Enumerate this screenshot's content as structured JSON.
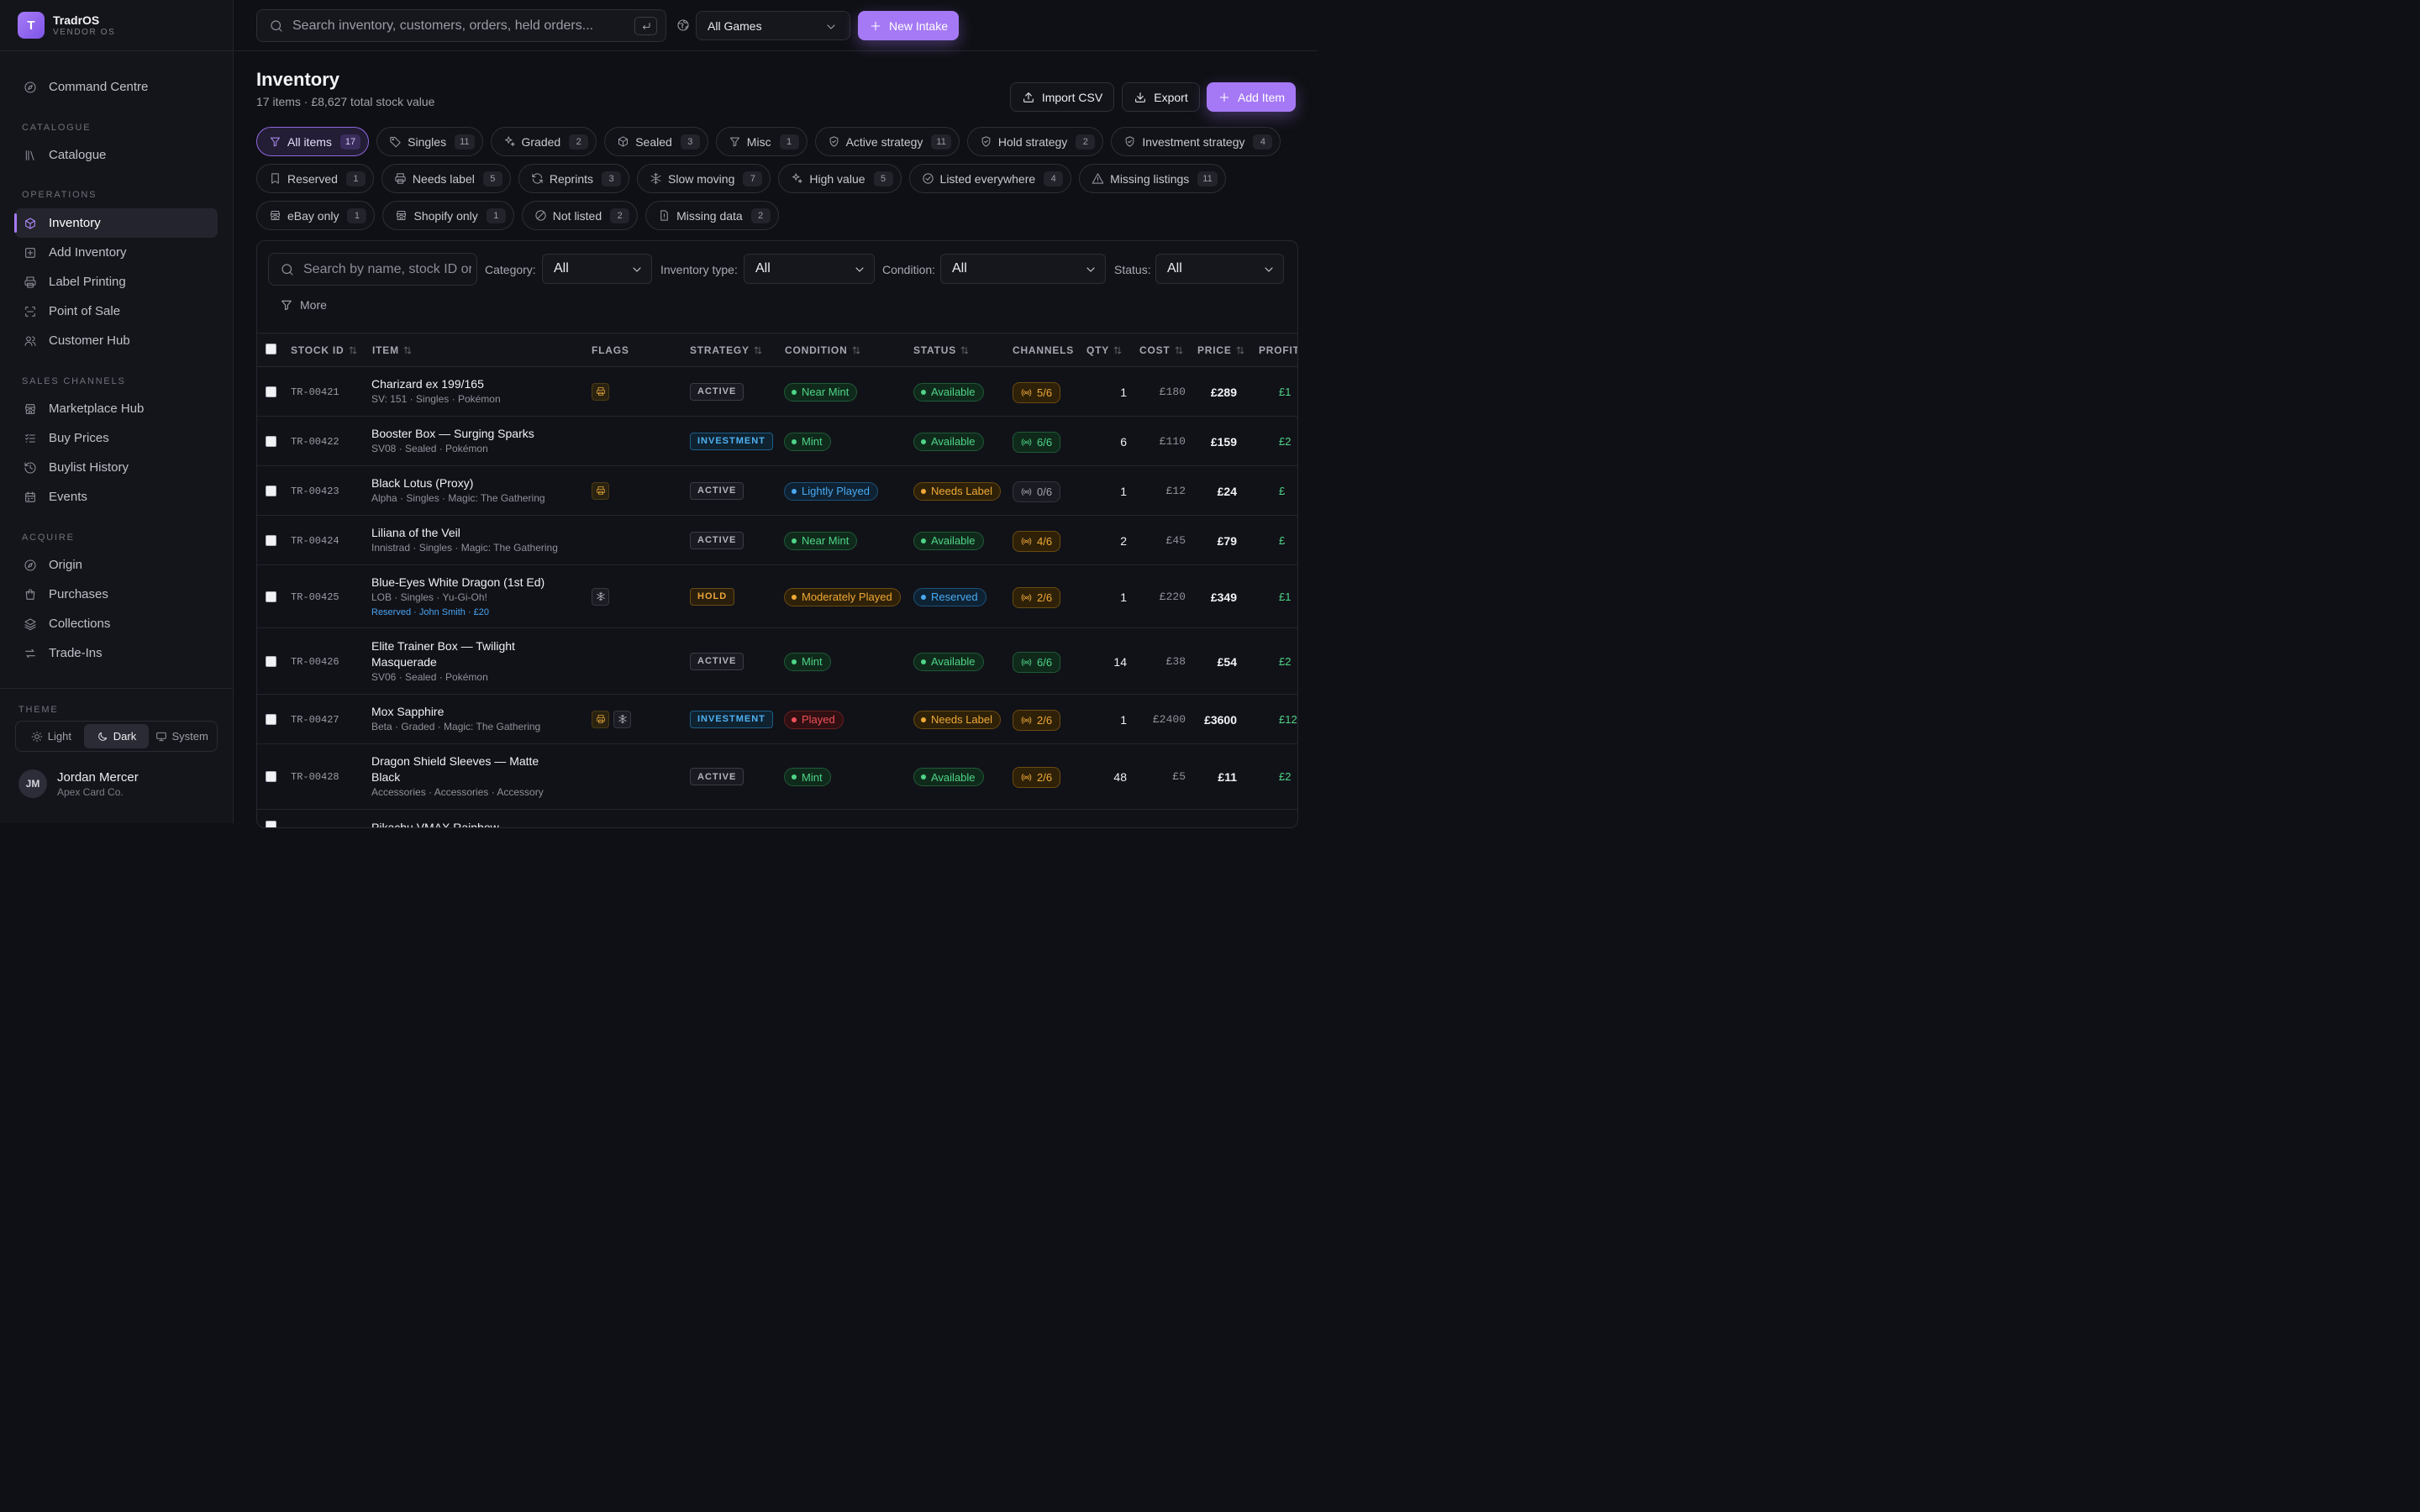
{
  "brand": {
    "logo_letter": "T",
    "name": "TradrOS",
    "sub": "VENDOR OS"
  },
  "nav": {
    "command": "Command Centre",
    "catalogue_section": "CATALOGUE",
    "catalogue": "Catalogue",
    "operations_section": "OPERATIONS",
    "inventory": "Inventory",
    "add_inventory": "Add Inventory",
    "label_printing": "Label Printing",
    "pos": "Point of Sale",
    "customer_hub": "Customer Hub",
    "sales_section": "SALES CHANNELS",
    "marketplace": "Marketplace Hub",
    "buy_prices": "Buy Prices",
    "buylist": "Buylist History",
    "events": "Events",
    "acquire_section": "ACQUIRE",
    "origin": "Origin",
    "purchases": "Purchases",
    "collections": "Collections",
    "trade_ins": "Trade-Ins"
  },
  "theme": {
    "label": "THEME",
    "light": "Light",
    "dark": "Dark",
    "system": "System"
  },
  "user": {
    "initials": "JM",
    "name": "Jordan Mercer",
    "org": "Apex Card Co."
  },
  "topbar": {
    "search_placeholder": "Search inventory, customers, orders, held orders...",
    "game_select": "All Games",
    "new_intake": "New Intake"
  },
  "page": {
    "title": "Inventory",
    "subtitle": "17 items · £8,627 total stock value",
    "import_csv": "Import CSV",
    "export": "Export",
    "add_item": "Add Item"
  },
  "chips": [
    {
      "label": "All items",
      "count": "17",
      "icon": "filter-icon"
    },
    {
      "label": "Singles",
      "count": "11",
      "icon": "tag-icon"
    },
    {
      "label": "Graded",
      "count": "2",
      "icon": "sparkle-icon"
    },
    {
      "label": "Sealed",
      "count": "3",
      "icon": "box-icon"
    },
    {
      "label": "Misc",
      "count": "1",
      "icon": "filter-icon"
    },
    {
      "label": "Active strategy",
      "count": "11",
      "icon": "shield-icon"
    },
    {
      "label": "Hold strategy",
      "count": "2",
      "icon": "shield-icon"
    },
    {
      "label": "Investment strategy",
      "count": "4",
      "icon": "shield-icon"
    },
    {
      "label": "Reserved",
      "count": "1",
      "icon": "bookmark-icon"
    },
    {
      "label": "Needs label",
      "count": "5",
      "icon": "printer-icon"
    },
    {
      "label": "Reprints",
      "count": "3",
      "icon": "refresh-icon"
    },
    {
      "label": "Slow moving",
      "count": "7",
      "icon": "snowflake-icon"
    },
    {
      "label": "High value",
      "count": "5",
      "icon": "sparkle-icon"
    },
    {
      "label": "Listed everywhere",
      "count": "4",
      "icon": "check-circle-icon"
    },
    {
      "label": "Missing listings",
      "count": "11",
      "icon": "warning-icon"
    },
    {
      "label": "eBay only",
      "count": "1",
      "icon": "store-icon"
    },
    {
      "label": "Shopify only",
      "count": "1",
      "icon": "store-icon"
    },
    {
      "label": "Not listed",
      "count": "2",
      "icon": "ban-icon"
    },
    {
      "label": "Missing data",
      "count": "2",
      "icon": "file-alert-icon"
    }
  ],
  "filters": {
    "search_placeholder": "Search by name, stock ID or set",
    "category_label": "Category:",
    "category_value": "All",
    "type_label": "Inventory type:",
    "type_value": "All",
    "condition_label": "Condition:",
    "condition_value": "All",
    "status_label": "Status:",
    "status_value": "All",
    "more": "More"
  },
  "table": {
    "headers": {
      "stock_id": "STOCK ID",
      "item": "ITEM",
      "flags": "FLAGS",
      "strategy": "STRATEGY",
      "condition": "CONDITION",
      "status": "STATUS",
      "channels": "CHANNELS",
      "qty": "QTY",
      "cost": "COST",
      "price": "PRICE",
      "profit": "PROFIT"
    },
    "rows": [
      {
        "id": "TR-00421",
        "name": "Charizard ex 199/165",
        "meta": "SV: 151 · Singles · Pokémon",
        "extra": "",
        "flags": [
          "printer-icon"
        ],
        "strategy": "ACTIVE",
        "strategy_tone": "active",
        "condition": "Near Mint",
        "condition_tone": "green",
        "status": "Available",
        "status_tone": "green",
        "channels": "5/6",
        "channels_tone": "orange",
        "qty": "1",
        "cost": "£180",
        "price": "£289",
        "profit": "£1"
      },
      {
        "id": "TR-00422",
        "name": "Booster Box — Surging Sparks",
        "meta": "SV08 · Sealed · Pokémon",
        "extra": "",
        "flags": [],
        "strategy": "INVESTMENT",
        "strategy_tone": "investment",
        "condition": "Mint",
        "condition_tone": "green",
        "status": "Available",
        "status_tone": "green",
        "channels": "6/6",
        "channels_tone": "green",
        "qty": "6",
        "cost": "£110",
        "price": "£159",
        "profit": "£2"
      },
      {
        "id": "TR-00423",
        "name": "Black Lotus (Proxy)",
        "meta": "Alpha · Singles · Magic: The Gathering",
        "extra": "",
        "flags": [
          "printer-icon"
        ],
        "strategy": "ACTIVE",
        "strategy_tone": "active",
        "condition": "Lightly Played",
        "condition_tone": "blue",
        "status": "Needs Label",
        "status_tone": "orange",
        "channels": "0/6",
        "channels_tone": "grey",
        "qty": "1",
        "cost": "£12",
        "price": "£24",
        "profit": "£"
      },
      {
        "id": "TR-00424",
        "name": "Liliana of the Veil",
        "meta": "Innistrad · Singles · Magic: The Gathering",
        "extra": "",
        "flags": [],
        "strategy": "ACTIVE",
        "strategy_tone": "active",
        "condition": "Near Mint",
        "condition_tone": "green",
        "status": "Available",
        "status_tone": "green",
        "channels": "4/6",
        "channels_tone": "orange",
        "qty": "2",
        "cost": "£45",
        "price": "£79",
        "profit": "£"
      },
      {
        "id": "TR-00425",
        "name": "Blue-Eyes White Dragon (1st Ed)",
        "meta": "LOB · Singles · Yu-Gi-Oh!",
        "extra": "Reserved · John Smith · £20",
        "flags": [
          "snowflake-icon"
        ],
        "strategy": "HOLD",
        "strategy_tone": "hold",
        "condition": "Moderately Played",
        "condition_tone": "orange",
        "status": "Reserved",
        "status_tone": "blue",
        "channels": "2/6",
        "channels_tone": "orange",
        "qty": "1",
        "cost": "£220",
        "price": "£349",
        "profit": "£1"
      },
      {
        "id": "TR-00426",
        "name": "Elite Trainer Box — Twilight Masquerade",
        "meta": "SV06 · Sealed · Pokémon",
        "extra": "",
        "flags": [],
        "strategy": "ACTIVE",
        "strategy_tone": "active",
        "condition": "Mint",
        "condition_tone": "green",
        "status": "Available",
        "status_tone": "green",
        "channels": "6/6",
        "channels_tone": "green",
        "qty": "14",
        "cost": "£38",
        "price": "£54",
        "profit": "£2"
      },
      {
        "id": "TR-00427",
        "name": "Mox Sapphire",
        "meta": "Beta · Graded · Magic: The Gathering",
        "extra": "",
        "flags": [
          "printer-icon",
          "snowflake-icon"
        ],
        "strategy": "INVESTMENT",
        "strategy_tone": "investment",
        "condition": "Played",
        "condition_tone": "red",
        "status": "Needs Label",
        "status_tone": "orange",
        "channels": "2/6",
        "channels_tone": "orange",
        "qty": "1",
        "cost": "£2400",
        "price": "£3600",
        "profit": "£12"
      },
      {
        "id": "TR-00428",
        "name": "Dragon Shield Sleeves — Matte Black",
        "meta": "Accessories · Accessories · Accessory",
        "extra": "",
        "flags": [],
        "strategy": "ACTIVE",
        "strategy_tone": "active",
        "condition": "Mint",
        "condition_tone": "green",
        "status": "Available",
        "status_tone": "green",
        "channels": "2/6",
        "channels_tone": "orange",
        "qty": "48",
        "cost": "£5",
        "price": "£11",
        "profit": "£2"
      },
      {
        "id": "",
        "name": "Pikachu VMAX Rainbow",
        "meta": "",
        "extra": "",
        "flags": [],
        "strategy": "",
        "strategy_tone": "active",
        "condition": "",
        "condition_tone": "green",
        "status": "",
        "status_tone": "green",
        "channels": "",
        "channels_tone": "orange",
        "qty": "",
        "cost": "",
        "price": "",
        "profit": ""
      }
    ]
  }
}
